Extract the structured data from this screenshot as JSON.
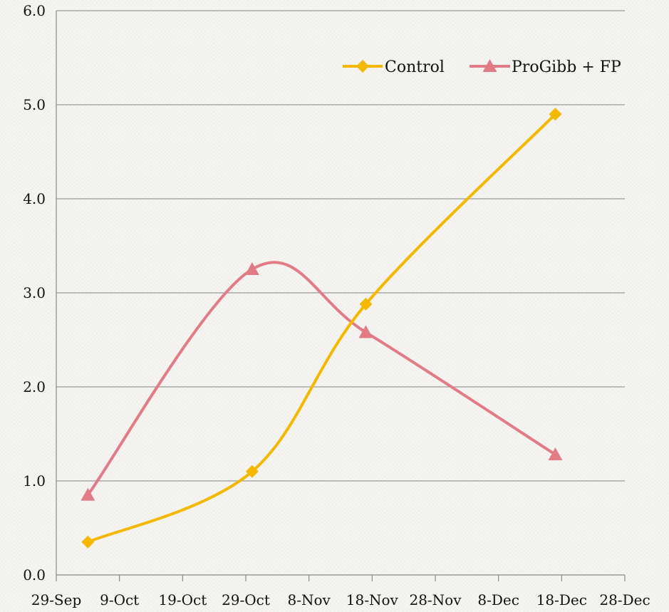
{
  "chart_data": {
    "type": "line",
    "x_axis": {
      "type": "date",
      "ticks": [
        "29-Sep",
        "9-Oct",
        "19-Oct",
        "29-Oct",
        "8-Nov",
        "18-Nov",
        "28-Nov",
        "8-Dec",
        "18-Dec",
        "28-Dec"
      ]
    },
    "y_axis": {
      "range": [
        0,
        6
      ],
      "ticks": [
        "0.0",
        "1.0",
        "2.0",
        "3.0",
        "4.0",
        "5.0",
        "6.0"
      ]
    },
    "grid": {
      "horizontal": true,
      "vertical": false
    },
    "legend": {
      "position": "top-right"
    },
    "series": [
      {
        "name": "Control",
        "color": "#f4b800",
        "marker": "diamond",
        "smooth": true,
        "points": [
          {
            "x": "2012-10-04",
            "y": 0.35
          },
          {
            "x": "2012-10-30",
            "y": 1.1
          },
          {
            "x": "2012-11-17",
            "y": 2.88
          },
          {
            "x": "2012-12-17",
            "y": 4.9
          }
        ]
      },
      {
        "name": "ProGibb + FP",
        "color": "#e27b86",
        "marker": "triangle",
        "smooth": true,
        "points": [
          {
            "x": "2012-10-04",
            "y": 0.85
          },
          {
            "x": "2012-10-30",
            "y": 3.25
          },
          {
            "x": "2012-11-17",
            "y": 2.58
          },
          {
            "x": "2012-12-17",
            "y": 1.28
          }
        ]
      }
    ]
  }
}
